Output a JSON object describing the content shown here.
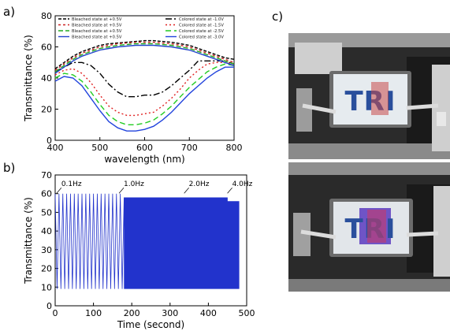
{
  "panel_labels": {
    "a": "a)",
    "b": "b)",
    "c": "c)"
  },
  "chart_data": [
    {
      "type": "line",
      "xlabel": "wavelength (nm)",
      "ylabel": "Transmittance (%)",
      "xlim": [
        400,
        800
      ],
      "ylim": [
        0,
        80
      ],
      "xticks": [
        "400",
        "500",
        "600",
        "700",
        "800"
      ],
      "yticks": [
        "0",
        "20",
        "40",
        "60",
        "80"
      ],
      "grid": false,
      "legend": "top, two columns",
      "series": [
        {
          "name": "Bleached state at +0.5V",
          "color": "#000000",
          "dash": "4,2",
          "x": [
            400,
            420,
            440,
            460,
            480,
            500,
            520,
            540,
            560,
            580,
            600,
            620,
            640,
            660,
            680,
            700,
            720,
            740,
            760,
            780,
            800
          ],
          "y": [
            46,
            50,
            54,
            57,
            59,
            61,
            62,
            62.5,
            63,
            63.5,
            64,
            64,
            63.5,
            63,
            62,
            61,
            59,
            57,
            55,
            53,
            52
          ]
        },
        {
          "name": "Colored state at -1.0V",
          "color": "#000000",
          "dash": "8,3,2,3",
          "x": [
            400,
            420,
            440,
            460,
            480,
            500,
            520,
            540,
            560,
            580,
            600,
            620,
            640,
            660,
            680,
            700,
            720,
            740,
            760,
            780,
            800
          ],
          "y": [
            44,
            47,
            50,
            50,
            48,
            43,
            36,
            31,
            28,
            28,
            29,
            29,
            31,
            35,
            40,
            45,
            51,
            51,
            51,
            51,
            49
          ]
        },
        {
          "name": "Bleached state at +0.5V",
          "color": "#cc2222",
          "dash": "3,3",
          "x": [
            400,
            420,
            440,
            460,
            480,
            500,
            520,
            540,
            560,
            580,
            600,
            620,
            640,
            660,
            680,
            700,
            720,
            740,
            760,
            780,
            800
          ],
          "y": [
            45,
            49,
            53,
            56,
            58,
            60,
            61,
            62,
            62.5,
            63,
            63,
            63,
            62.5,
            62,
            61,
            60,
            58,
            56,
            54,
            52,
            50
          ]
        },
        {
          "name": "Colored state at -1.5V",
          "color": "#e02020",
          "dash": "2,3",
          "x": [
            400,
            420,
            440,
            460,
            480,
            500,
            520,
            540,
            560,
            580,
            600,
            620,
            640,
            660,
            680,
            700,
            720,
            740,
            760,
            780,
            800
          ],
          "y": [
            42,
            45,
            46,
            43,
            37,
            29,
            22,
            18,
            16,
            16,
            17,
            18,
            22,
            27,
            33,
            40,
            45,
            49,
            50,
            50,
            49
          ]
        },
        {
          "name": "Bleached state at +0.5V",
          "color": "#22aa22",
          "dash": "6,3",
          "x": [
            400,
            420,
            440,
            460,
            480,
            500,
            520,
            540,
            560,
            580,
            600,
            620,
            640,
            660,
            680,
            700,
            720,
            740,
            760,
            780,
            800
          ],
          "y": [
            44,
            48,
            52,
            55,
            57,
            59,
            60,
            61,
            61.5,
            62,
            62,
            62,
            61.5,
            61,
            60,
            59,
            57,
            55,
            53,
            51,
            49
          ]
        },
        {
          "name": "Colored state at -2.5V",
          "color": "#22cc22",
          "dash": "7,4",
          "x": [
            400,
            420,
            440,
            460,
            480,
            500,
            520,
            540,
            560,
            580,
            600,
            620,
            640,
            660,
            680,
            700,
            720,
            740,
            760,
            780,
            800
          ],
          "y": [
            40,
            43,
            42,
            38,
            31,
            23,
            16,
            12,
            10,
            10,
            11,
            13,
            17,
            22,
            28,
            34,
            39,
            44,
            47,
            49,
            48
          ]
        },
        {
          "name": "Bleached state at +0.5V",
          "color": "#2244cc",
          "dash": "",
          "x": [
            400,
            420,
            440,
            460,
            480,
            500,
            520,
            540,
            560,
            580,
            600,
            620,
            640,
            660,
            680,
            700,
            720,
            740,
            760,
            780,
            800
          ],
          "y": [
            43,
            47,
            51,
            54,
            56,
            58,
            59,
            60,
            60.5,
            61,
            61,
            61,
            60.5,
            60,
            59,
            58,
            56,
            54,
            52,
            50,
            48
          ]
        },
        {
          "name": "Colored state at -3.0V",
          "color": "#2244dd",
          "dash": "",
          "x": [
            400,
            420,
            440,
            460,
            480,
            500,
            520,
            540,
            560,
            580,
            600,
            620,
            640,
            660,
            680,
            700,
            720,
            740,
            760,
            780,
            800
          ],
          "y": [
            38,
            41,
            40,
            35,
            27,
            19,
            12,
            8,
            6,
            6,
            7,
            9,
            13,
            18,
            24,
            30,
            35,
            40,
            44,
            47,
            47
          ]
        }
      ]
    },
    {
      "type": "line",
      "xlabel": "Time (second)",
      "ylabel": "Transmittance (%)",
      "xlim": [
        0,
        500
      ],
      "ylim": [
        0,
        70
      ],
      "xticks": [
        "0",
        "100",
        "200",
        "300",
        "400",
        "500"
      ],
      "yticks": [
        "0",
        "10",
        "20",
        "30",
        "40",
        "50",
        "60",
        "70"
      ],
      "grid": false,
      "series": [
        {
          "name": "",
          "color": "#2233cc",
          "segments": [
            {
              "t_start": 0,
              "t_end": 180,
              "frequency_hz": 0.1,
              "high": 60,
              "low": 9
            },
            {
              "t_start": 180,
              "t_end": 320,
              "frequency_hz": 1.0,
              "high": 58,
              "low": 9
            },
            {
              "t_start": 320,
              "t_end": 450,
              "frequency_hz": 2.0,
              "high": 58,
              "low": 9
            },
            {
              "t_start": 450,
              "t_end": 480,
              "frequency_hz": 4.0,
              "high": 56,
              "low": 9
            }
          ]
        }
      ],
      "annotations": [
        {
          "text": "0.1Hz",
          "x": 12,
          "y": 64
        },
        {
          "text": "1.0Hz",
          "x": 175,
          "y": 64
        },
        {
          "text": "2.0Hz",
          "x": 345,
          "y": 64
        },
        {
          "text": "4.0Hz",
          "x": 458,
          "y": 64
        }
      ]
    }
  ],
  "photos": {
    "top": {
      "logo_text": "TRI"
    },
    "bottom": {
      "logo_text": "TRI"
    }
  }
}
